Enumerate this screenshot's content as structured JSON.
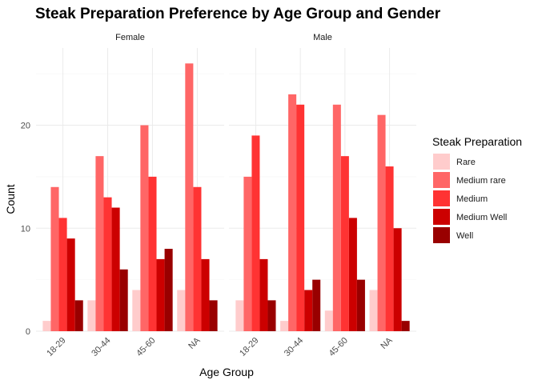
{
  "chart_data": {
    "type": "bar",
    "title": "Steak Preparation Preference by Age Group and Gender",
    "xlabel": "Age Group",
    "ylabel": "Count",
    "ylim": [
      0,
      27.5
    ],
    "y_ticks": [
      0,
      10,
      20
    ],
    "categories": [
      "18-29",
      "30-44",
      "45-60",
      "NA"
    ],
    "legend": {
      "title": "Steak Preparation",
      "placement": "right",
      "entries": [
        "Rare",
        "Medium rare",
        "Medium",
        "Medium Well",
        "Well"
      ]
    },
    "colors": [
      "#ffcccc",
      "#ff6666",
      "#ff3333",
      "#cc0000",
      "#990000"
    ],
    "grid": true,
    "facets": [
      {
        "label": "Female",
        "series": [
          {
            "name": "Rare",
            "values": [
              1,
              3,
              4,
              4
            ]
          },
          {
            "name": "Medium rare",
            "values": [
              14,
              17,
              20,
              26
            ]
          },
          {
            "name": "Medium",
            "values": [
              11,
              13,
              15,
              14
            ]
          },
          {
            "name": "Medium Well",
            "values": [
              9,
              12,
              7,
              7
            ]
          },
          {
            "name": "Well",
            "values": [
              3,
              6,
              8,
              3
            ]
          }
        ]
      },
      {
        "label": "Male",
        "series": [
          {
            "name": "Rare",
            "values": [
              3,
              1,
              2,
              4
            ]
          },
          {
            "name": "Medium rare",
            "values": [
              15,
              23,
              22,
              21
            ]
          },
          {
            "name": "Medium",
            "values": [
              19,
              22,
              17,
              16
            ]
          },
          {
            "name": "Medium Well",
            "values": [
              7,
              4,
              11,
              10
            ]
          },
          {
            "name": "Well",
            "values": [
              3,
              5,
              5,
              1
            ]
          }
        ]
      }
    ]
  }
}
